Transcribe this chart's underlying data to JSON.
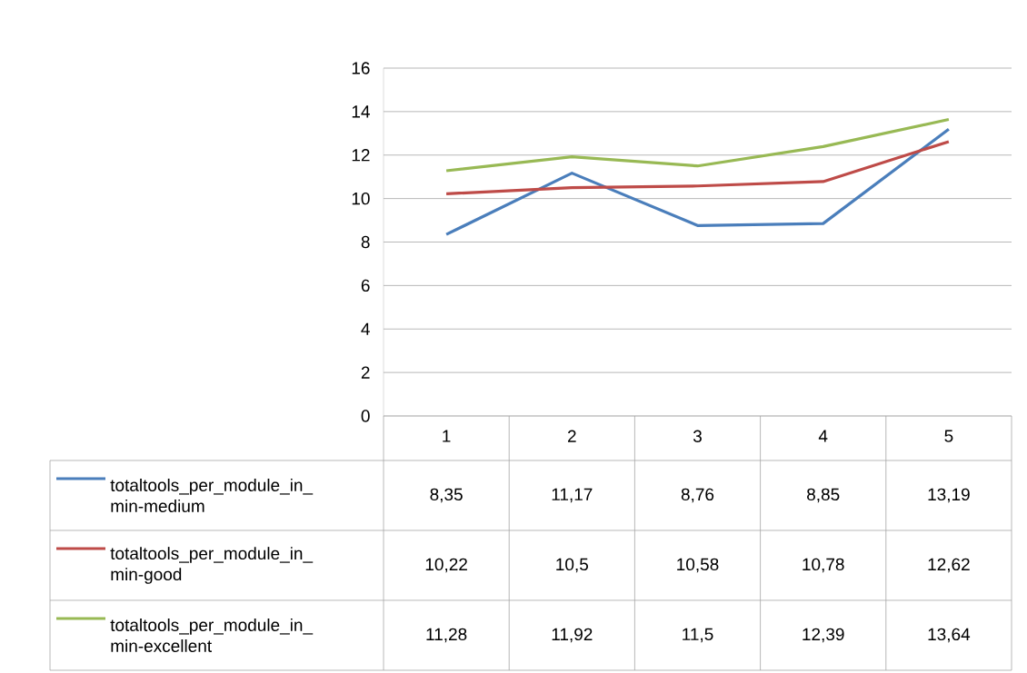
{
  "chart_data": {
    "type": "line",
    "categories": [
      "1",
      "2",
      "3",
      "4",
      "5"
    ],
    "ylim": [
      0,
      16
    ],
    "yticks": [
      0,
      2,
      4,
      6,
      8,
      10,
      12,
      14,
      16
    ],
    "grid": "y",
    "legend": "bottom",
    "marker": "none",
    "line_style": "solid",
    "series": [
      {
        "name": "totaltools_per_module_in_min-medium",
        "color": "#4a7ebb",
        "values": [
          8.35,
          11.17,
          8.76,
          8.85,
          13.19
        ],
        "value_labels": [
          "8,35",
          "11,17",
          "8,76",
          "8,85",
          "13,19"
        ]
      },
      {
        "name": "totaltools_per_module_in_min-good",
        "color": "#be4b48",
        "values": [
          10.22,
          10.5,
          10.58,
          10.78,
          12.62
        ],
        "value_labels": [
          "10,22",
          "10,5",
          "10,58",
          "10,78",
          "12,62"
        ]
      },
      {
        "name": "totaltools_per_module_in_min-excellent",
        "color": "#98b954",
        "values": [
          11.28,
          11.92,
          11.5,
          12.39,
          13.64
        ],
        "value_labels": [
          "11,28",
          "11,92",
          "11,5",
          "12,39",
          "13,64"
        ]
      }
    ]
  }
}
